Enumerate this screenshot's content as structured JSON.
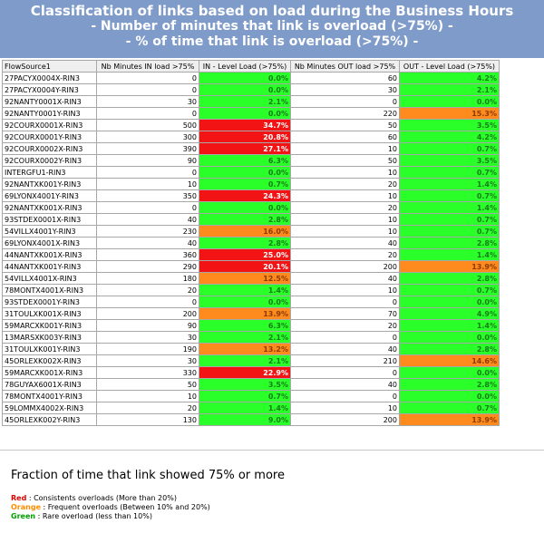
{
  "header": {
    "line1": "Classification of links based on load during the Business Hours",
    "line2": "- Number of minutes that link is overload (>75%) -",
    "line3": "- % of time that link is overload (>75%) -"
  },
  "table": {
    "columns": [
      "FlowSource1",
      "Nb Minutes IN load >75%",
      "IN - Level Load (>75%)",
      "Nb Minutes OUT load >75%",
      "OUT - Level Load (>75%)"
    ],
    "rows": [
      {
        "name": "27PACYX0004X-RIN3",
        "in_min": "0",
        "in_pct": "0.0%",
        "in_color": "green",
        "out_min": "60",
        "out_pct": "4.2%",
        "out_color": "green"
      },
      {
        "name": "27PACYX0004Y-RIN3",
        "in_min": "0",
        "in_pct": "0.0%",
        "in_color": "green",
        "out_min": "30",
        "out_pct": "2.1%",
        "out_color": "green"
      },
      {
        "name": "92NANTY0001X-RIN3",
        "in_min": "30",
        "in_pct": "2.1%",
        "in_color": "green",
        "out_min": "0",
        "out_pct": "0.0%",
        "out_color": "green"
      },
      {
        "name": "92NANTY0001Y-RIN3",
        "in_min": "0",
        "in_pct": "0.0%",
        "in_color": "green",
        "out_min": "220",
        "out_pct": "15.3%",
        "out_color": "orange"
      },
      {
        "name": "92COURX0001X-RIN3",
        "in_min": "500",
        "in_pct": "34.7%",
        "in_color": "red",
        "out_min": "50",
        "out_pct": "3.5%",
        "out_color": "green"
      },
      {
        "name": "92COURX0001Y-RIN3",
        "in_min": "300",
        "in_pct": "20.8%",
        "in_color": "red",
        "out_min": "60",
        "out_pct": "4.2%",
        "out_color": "green"
      },
      {
        "name": "92COURX0002X-RIN3",
        "in_min": "390",
        "in_pct": "27.1%",
        "in_color": "red",
        "out_min": "10",
        "out_pct": "0.7%",
        "out_color": "green"
      },
      {
        "name": "92COURX0002Y-RIN3",
        "in_min": "90",
        "in_pct": "6.3%",
        "in_color": "green",
        "out_min": "50",
        "out_pct": "3.5%",
        "out_color": "green"
      },
      {
        "name": "INTERGFU1-RIN3",
        "in_min": "0",
        "in_pct": "0.0%",
        "in_color": "green",
        "out_min": "10",
        "out_pct": "0.7%",
        "out_color": "green"
      },
      {
        "name": "92NANTXK001Y-RIN3",
        "in_min": "10",
        "in_pct": "0.7%",
        "in_color": "green",
        "out_min": "20",
        "out_pct": "1.4%",
        "out_color": "green"
      },
      {
        "name": "69LYONX4001Y-RIN3",
        "in_min": "350",
        "in_pct": "24.3%",
        "in_color": "red",
        "out_min": "10",
        "out_pct": "0.7%",
        "out_color": "green"
      },
      {
        "name": "92NANTXK001X-RIN3",
        "in_min": "0",
        "in_pct": "0.0%",
        "in_color": "green",
        "out_min": "20",
        "out_pct": "1.4%",
        "out_color": "green"
      },
      {
        "name": "93STDEX0001X-RIN3",
        "in_min": "40",
        "in_pct": "2.8%",
        "in_color": "green",
        "out_min": "10",
        "out_pct": "0.7%",
        "out_color": "green"
      },
      {
        "name": "54VILLX4001Y-RIN3",
        "in_min": "230",
        "in_pct": "16.0%",
        "in_color": "orange",
        "out_min": "10",
        "out_pct": "0.7%",
        "out_color": "green"
      },
      {
        "name": "69LYONX4001X-RIN3",
        "in_min": "40",
        "in_pct": "2.8%",
        "in_color": "green",
        "out_min": "40",
        "out_pct": "2.8%",
        "out_color": "green"
      },
      {
        "name": "44NANTXK001X-RIN3",
        "in_min": "360",
        "in_pct": "25.0%",
        "in_color": "red",
        "out_min": "20",
        "out_pct": "1.4%",
        "out_color": "green"
      },
      {
        "name": "44NANTXK001Y-RIN3",
        "in_min": "290",
        "in_pct": "20.1%",
        "in_color": "red",
        "out_min": "200",
        "out_pct": "13.9%",
        "out_color": "orange"
      },
      {
        "name": "54VILLX4001X-RIN3",
        "in_min": "180",
        "in_pct": "12.5%",
        "in_color": "orange",
        "out_min": "40",
        "out_pct": "2.8%",
        "out_color": "green"
      },
      {
        "name": "78MONTX4001X-RIN3",
        "in_min": "20",
        "in_pct": "1.4%",
        "in_color": "green",
        "out_min": "10",
        "out_pct": "0.7%",
        "out_color": "green"
      },
      {
        "name": "93STDEX0001Y-RIN3",
        "in_min": "0",
        "in_pct": "0.0%",
        "in_color": "green",
        "out_min": "0",
        "out_pct": "0.0%",
        "out_color": "green"
      },
      {
        "name": "31TOULXK001X-RIN3",
        "in_min": "200",
        "in_pct": "13.9%",
        "in_color": "orange",
        "out_min": "70",
        "out_pct": "4.9%",
        "out_color": "green"
      },
      {
        "name": "59MARCXK001Y-RIN3",
        "in_min": "90",
        "in_pct": "6.3%",
        "in_color": "green",
        "out_min": "20",
        "out_pct": "1.4%",
        "out_color": "green"
      },
      {
        "name": "13MARSXK003Y-RIN3",
        "in_min": "30",
        "in_pct": "2.1%",
        "in_color": "green",
        "out_min": "0",
        "out_pct": "0.0%",
        "out_color": "green"
      },
      {
        "name": "31TOULXK001Y-RIN3",
        "in_min": "190",
        "in_pct": "13.2%",
        "in_color": "orange",
        "out_min": "40",
        "out_pct": "2.8%",
        "out_color": "green"
      },
      {
        "name": "45ORLEXK002X-RIN3",
        "in_min": "30",
        "in_pct": "2.1%",
        "in_color": "green",
        "out_min": "210",
        "out_pct": "14.6%",
        "out_color": "orange"
      },
      {
        "name": "59MARCXK001X-RIN3",
        "in_min": "330",
        "in_pct": "22.9%",
        "in_color": "red",
        "out_min": "0",
        "out_pct": "0.0%",
        "out_color": "green"
      },
      {
        "name": "78GUYAX6001X-RIN3",
        "in_min": "50",
        "in_pct": "3.5%",
        "in_color": "green",
        "out_min": "40",
        "out_pct": "2.8%",
        "out_color": "green"
      },
      {
        "name": "78MONTX4001Y-RIN3",
        "in_min": "10",
        "in_pct": "0.7%",
        "in_color": "green",
        "out_min": "0",
        "out_pct": "0.0%",
        "out_color": "green"
      },
      {
        "name": "59LOMMX4002X-RIN3",
        "in_min": "20",
        "in_pct": "1.4%",
        "in_color": "green",
        "out_min": "10",
        "out_pct": "0.7%",
        "out_color": "green"
      },
      {
        "name": "45ORLEXK002Y-RIN3",
        "in_min": "130",
        "in_pct": "9.0%",
        "in_color": "green",
        "out_min": "200",
        "out_pct": "13.9%",
        "out_color": "orange"
      }
    ]
  },
  "legend": {
    "title": "Fraction of time that link showed 75% or more",
    "items": [
      {
        "key": "Red",
        "desc": " : Consistents overloads (More than 20%)",
        "color": "#e00000"
      },
      {
        "key": "Orange",
        "desc": " : Frequent overloads (Between 10% and 20%)",
        "color": "#ff8c00"
      },
      {
        "key": "Green",
        "desc": " : Rare overload (less than 10%)",
        "color": "#00a000"
      }
    ]
  }
}
